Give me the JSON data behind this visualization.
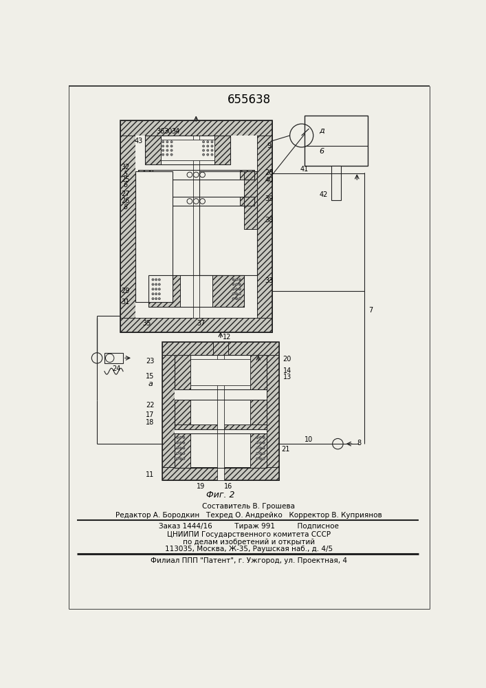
{
  "title": "655638",
  "fig_label": "Фиг. 2",
  "footer_line1": "Составитель В. Грошева",
  "footer_line2": "Редактор А. Бородкин   Техред О. Андрейко   Корректор В. Куприянов",
  "footer_line3": "Заказ 1444/16          Тираж 991          Подписное",
  "footer_line4": "ЦНИИПИ Государственного комитета СССР",
  "footer_line5": "по делам изобретений и открытий",
  "footer_line6": "113035, Москва, Ж-35, Раушская наб., д. 4/5",
  "footer_line7": "Филиал ППП \"Патент\", г. Ужгород, ул. Проектная, 4",
  "bg_color": "#f0efe8",
  "lc": "#222222"
}
